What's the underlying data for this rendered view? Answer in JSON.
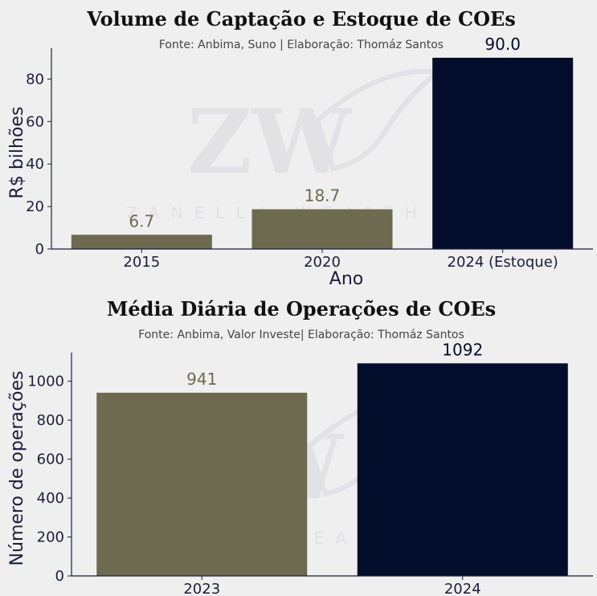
{
  "colors": {
    "background": "#efefef",
    "olive": "#6e6a4f",
    "navy": "#020d2b",
    "axis": "#1a1f3a",
    "watermark": "#d6d6df"
  },
  "watermark": {
    "text": "ZANELLA WEALTH",
    "monogram": "ZW"
  },
  "chart_data": [
    {
      "type": "bar",
      "title": "Volume de Captação e Estoque de COEs",
      "subtitle": "Fonte: Anbima, Suno | Elaboração: Thomáz Santos",
      "xlabel": "Ano",
      "ylabel": "R$ bilhões",
      "categories": [
        "2015",
        "2020",
        "2024 (Estoque)"
      ],
      "values": [
        6.7,
        18.7,
        90.0
      ],
      "value_labels": [
        "6.7",
        "18.7",
        "90.0"
      ],
      "bar_colors": [
        "#6e6a4f",
        "#6e6a4f",
        "#020d2b"
      ],
      "label_colors": [
        "#6e6a4f",
        "#6e6a4f",
        "#020d2b"
      ],
      "ylim": [
        0,
        94.5
      ],
      "yticks": [
        0,
        20,
        40,
        60,
        80
      ],
      "grid": false
    },
    {
      "type": "bar",
      "title": "Média Diária de Operações de COEs",
      "subtitle": "Fonte: Anbima, Valor Investe| Elaboração: Thomáz Santos",
      "xlabel": "",
      "ylabel": "Número de operações",
      "categories": [
        "2023",
        "2024"
      ],
      "values": [
        941,
        1092
      ],
      "value_labels": [
        "941",
        "1092"
      ],
      "bar_colors": [
        "#6e6a4f",
        "#020d2b"
      ],
      "label_colors": [
        "#6e6a4f",
        "#020d2b"
      ],
      "ylim": [
        0,
        1147
      ],
      "yticks": [
        0,
        200,
        400,
        600,
        800,
        1000
      ],
      "grid": false
    }
  ]
}
